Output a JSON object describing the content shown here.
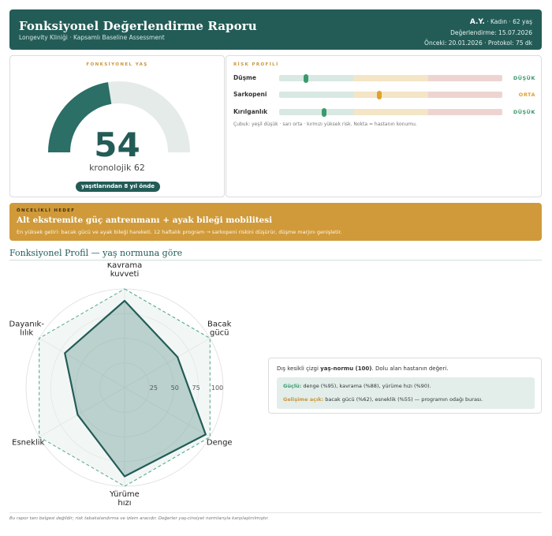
{
  "header": {
    "title": "Fonksiyonel Değerlendirme Raporu",
    "subtitle": "Longevity Kliniği · Kapsamlı Baseline Assessment",
    "patient_initials": "A.Y.",
    "patient_info": " · Kadın · 62 yaş",
    "assessment_date": "Değerlendirme: 15.07.2026",
    "previous": "Önceki: 20.01.2026 · Protokol: 75 dk"
  },
  "functional_age": {
    "label": "FONKSİYONEL YAŞ",
    "value": "54",
    "chronological_text": "kronolojik 62",
    "badge": "yaşıtlarından 8 yıl önde",
    "gauge_fraction": 0.45
  },
  "risk_profile": {
    "label": "RİSK PROFİLİ",
    "items": [
      {
        "name": "Düşme",
        "position": 0.12,
        "status": "DÜŞÜK",
        "color": "#3a9a6e"
      },
      {
        "name": "Sarkopeni",
        "position": 0.45,
        "status": "ORTA",
        "color": "#e0a22e"
      },
      {
        "name": "Kırılganlık",
        "position": 0.2,
        "status": "DÜŞÜK",
        "color": "#3a9a6e"
      }
    ],
    "note": "Çubuk: yeşil düşük · sarı orta · kırmızı yüksek risk. Nokta = hastanın konumu."
  },
  "priority": {
    "label": "ÖNCELİKLİ HEDEF",
    "title": "Alt ekstremite güç antrenmanı + ayak bileği mobilitesi",
    "text": "En yüksek getiri: bacak gücü ve ayak bileği hareketi. 12 haftalık program → sarkopeni riskini düşürür, düşme marjını genişletir."
  },
  "profile": {
    "title": "Fonksiyonel Profil — yaş normuna göre"
  },
  "chart_data": {
    "type": "radar",
    "categories": [
      "Kavrama kuvveti",
      "Bacak gücü",
      "Denge",
      "Yürüme hızı",
      "Esneklik",
      "Dayanıklılık"
    ],
    "axis_labels": [
      [
        "Kavrama",
        "kuvveti"
      ],
      [
        "Bacak",
        "gücü"
      ],
      [
        "Denge"
      ],
      [
        "Yürüme",
        "hızı"
      ],
      [
        "Esneklik"
      ],
      [
        "Dayanık-",
        "lılık"
      ]
    ],
    "ticks": [
      25,
      50,
      75,
      100
    ],
    "range": [
      0,
      100
    ],
    "series": [
      {
        "values": [
          88,
          62,
          95,
          90,
          55,
          70
        ],
        "color": "#235c57"
      },
      {
        "values": [
          100,
          100,
          100,
          100,
          100,
          100
        ],
        "color": "#5aaa94"
      }
    ]
  },
  "legend": {
    "note_prefix": "Dış kesikli çizgi ",
    "note_bold": "yaş-normu (100)",
    "note_suffix": ". Dolu alan hastanın değeri.",
    "strong_label": "Güçlü:",
    "strong_text": " denge (%95), kavrama (%88), yürüme hızı (%90).",
    "dev_label": "Gelişime açık:",
    "dev_text": " bacak gücü (%62), esneklik (%55) — programın odağı burası."
  },
  "footer": "Bu rapor tanı belgesi değildir; risk tabakalandırma ve izlem aracıdır. Değerler yaş-cinsiyet normlarıyla karşılaştırılmıştır."
}
